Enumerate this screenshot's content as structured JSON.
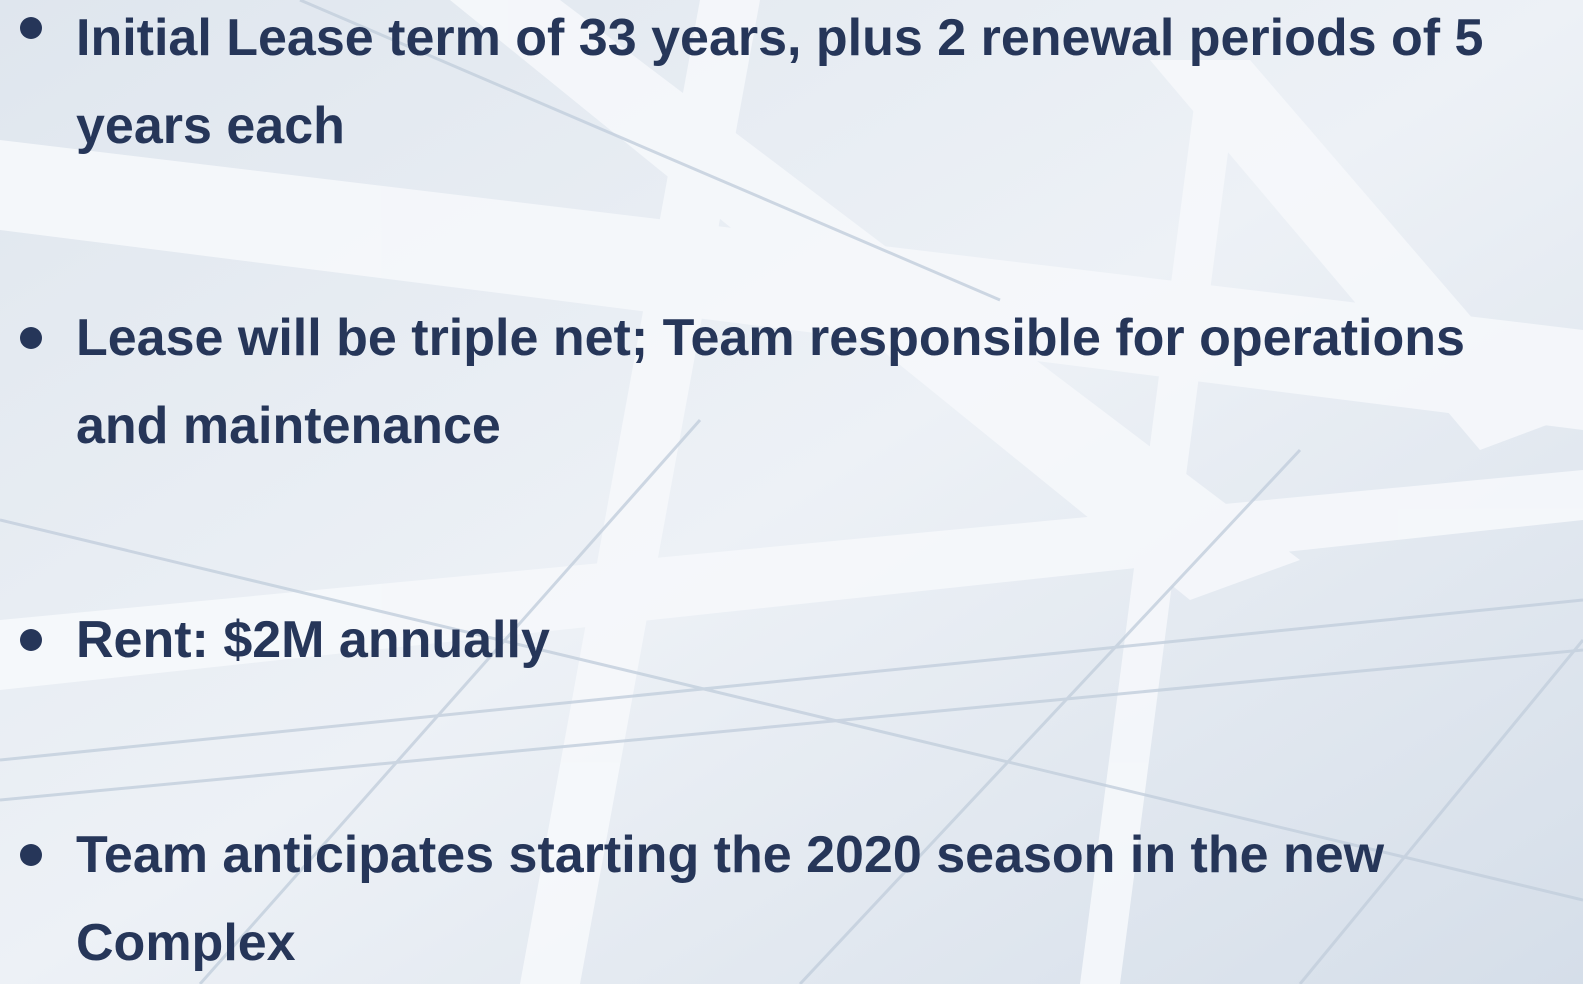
{
  "bullets": [
    "Initial Lease term of 33 years, plus 2 renewal periods of 5 years each",
    "Lease will be triple net; Team responsible for operations and maintenance",
    "Rent: $2M annually",
    "Team anticipates starting the 2020 season in the new Complex"
  ]
}
